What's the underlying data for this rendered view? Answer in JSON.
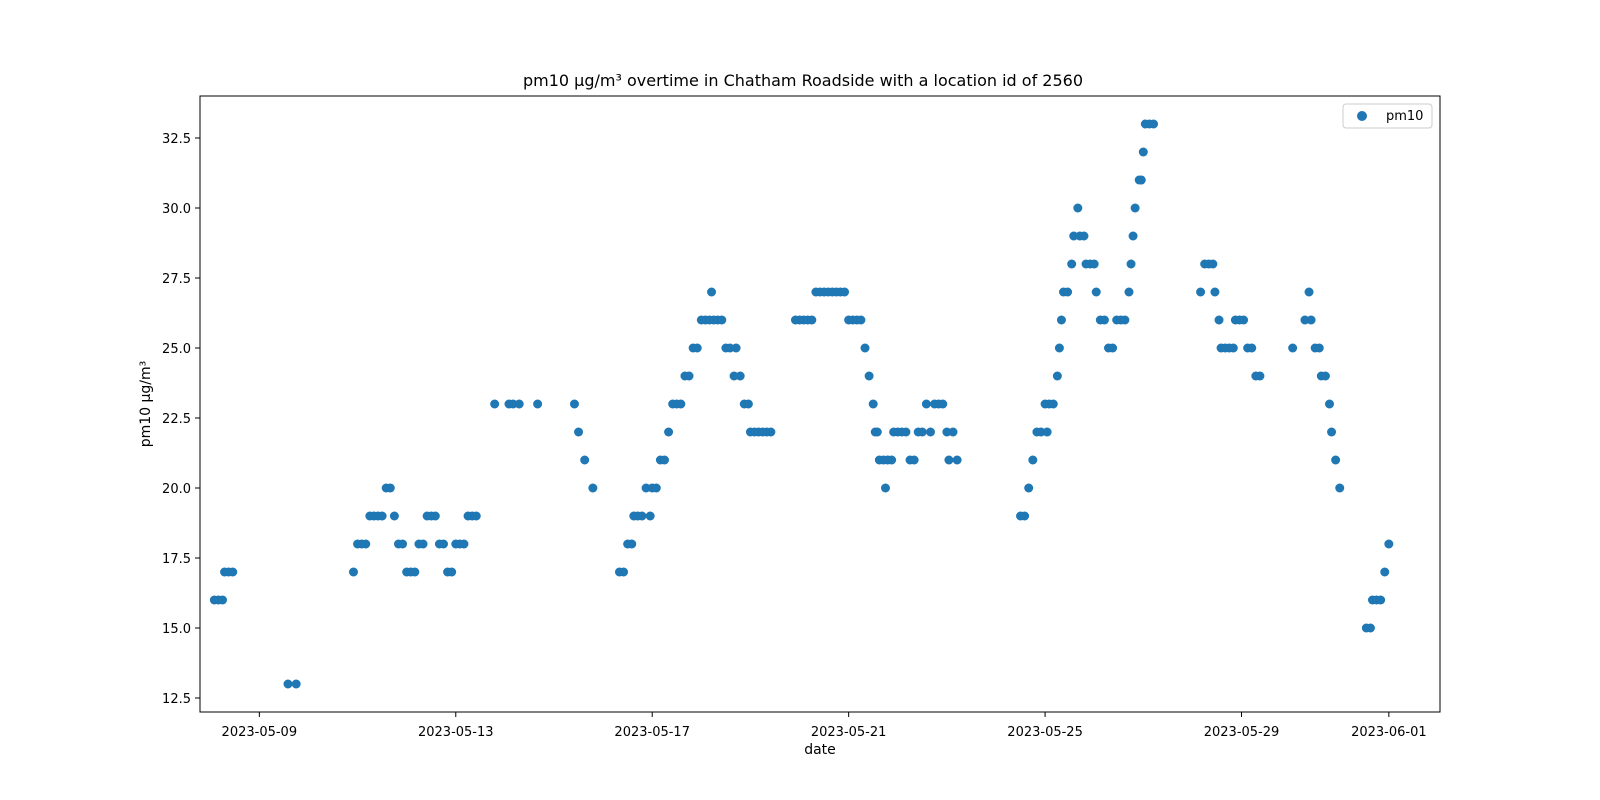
{
  "chart_data": {
    "type": "scatter",
    "title": "pm10 µg/m³ overtime in Chatham Roadside with a location id of 2560",
    "xlabel": "date",
    "ylabel": "pm10 µg/m³",
    "xlim": [
      "2023-05-07T19:00",
      "2023-06-02T01:00"
    ],
    "ylim": [
      12.0,
      34.0
    ],
    "x_ticks": [
      "2023-05-09",
      "2023-05-13",
      "2023-05-17",
      "2023-05-21",
      "2023-05-25",
      "2023-05-29",
      "2023-06-01"
    ],
    "y_ticks": [
      12.5,
      15.0,
      17.5,
      20.0,
      22.5,
      25.0,
      27.5,
      30.0,
      32.5
    ],
    "grid": false,
    "legend": "upper-right",
    "colors": {
      "series": "#1f77b4"
    },
    "series": [
      {
        "name": "pm10",
        "points": [
          [
            "2023-05-08T02:00",
            16
          ],
          [
            "2023-05-08T04:00",
            16
          ],
          [
            "2023-05-08T06:00",
            16
          ],
          [
            "2023-05-08T07:00",
            17
          ],
          [
            "2023-05-08T09:00",
            17
          ],
          [
            "2023-05-08T11:00",
            17
          ],
          [
            "2023-05-09T14:00",
            13
          ],
          [
            "2023-05-09T18:00",
            13
          ],
          [
            "2023-05-10T22:00",
            17
          ],
          [
            "2023-05-11T00:00",
            18
          ],
          [
            "2023-05-11T02:00",
            18
          ],
          [
            "2023-05-11T04:00",
            18
          ],
          [
            "2023-05-11T06:00",
            19
          ],
          [
            "2023-05-11T08:00",
            19
          ],
          [
            "2023-05-11T10:00",
            19
          ],
          [
            "2023-05-11T12:00",
            19
          ],
          [
            "2023-05-11T14:00",
            20
          ],
          [
            "2023-05-11T16:00",
            20
          ],
          [
            "2023-05-11T18:00",
            19
          ],
          [
            "2023-05-11T20:00",
            18
          ],
          [
            "2023-05-11T22:00",
            18
          ],
          [
            "2023-05-12T00:00",
            17
          ],
          [
            "2023-05-12T02:00",
            17
          ],
          [
            "2023-05-12T04:00",
            17
          ],
          [
            "2023-05-12T06:00",
            18
          ],
          [
            "2023-05-12T08:00",
            18
          ],
          [
            "2023-05-12T10:00",
            19
          ],
          [
            "2023-05-12T12:00",
            19
          ],
          [
            "2023-05-12T14:00",
            19
          ],
          [
            "2023-05-12T16:00",
            18
          ],
          [
            "2023-05-12T18:00",
            18
          ],
          [
            "2023-05-12T20:00",
            17
          ],
          [
            "2023-05-12T22:00",
            17
          ],
          [
            "2023-05-13T00:00",
            18
          ],
          [
            "2023-05-13T02:00",
            18
          ],
          [
            "2023-05-13T04:00",
            18
          ],
          [
            "2023-05-13T06:00",
            19
          ],
          [
            "2023-05-13T08:00",
            19
          ],
          [
            "2023-05-13T10:00",
            19
          ],
          [
            "2023-05-13T19:00",
            23
          ],
          [
            "2023-05-14T02:00",
            23
          ],
          [
            "2023-05-14T04:00",
            23
          ],
          [
            "2023-05-14T07:00",
            23
          ],
          [
            "2023-05-14T16:00",
            23
          ],
          [
            "2023-05-15T10:00",
            23
          ],
          [
            "2023-05-15T12:00",
            22
          ],
          [
            "2023-05-15T15:00",
            21
          ],
          [
            "2023-05-15T19:00",
            20
          ],
          [
            "2023-05-16T08:00",
            17
          ],
          [
            "2023-05-16T10:00",
            17
          ],
          [
            "2023-05-16T12:00",
            18
          ],
          [
            "2023-05-16T14:00",
            18
          ],
          [
            "2023-05-16T15:00",
            19
          ],
          [
            "2023-05-16T17:00",
            19
          ],
          [
            "2023-05-16T19:00",
            19
          ],
          [
            "2023-05-16T21:00",
            20
          ],
          [
            "2023-05-16T23:00",
            19
          ],
          [
            "2023-05-17T00:00",
            20
          ],
          [
            "2023-05-17T02:00",
            20
          ],
          [
            "2023-05-17T04:00",
            21
          ],
          [
            "2023-05-17T06:00",
            21
          ],
          [
            "2023-05-17T08:00",
            22
          ],
          [
            "2023-05-17T10:00",
            23
          ],
          [
            "2023-05-17T12:00",
            23
          ],
          [
            "2023-05-17T14:00",
            23
          ],
          [
            "2023-05-17T16:00",
            24
          ],
          [
            "2023-05-17T18:00",
            24
          ],
          [
            "2023-05-17T20:00",
            25
          ],
          [
            "2023-05-17T22:00",
            25
          ],
          [
            "2023-05-18T00:00",
            26
          ],
          [
            "2023-05-18T02:00",
            26
          ],
          [
            "2023-05-18T04:00",
            26
          ],
          [
            "2023-05-18T05:00",
            27
          ],
          [
            "2023-05-18T06:00",
            26
          ],
          [
            "2023-05-18T08:00",
            26
          ],
          [
            "2023-05-18T10:00",
            26
          ],
          [
            "2023-05-18T12:00",
            25
          ],
          [
            "2023-05-18T14:00",
            25
          ],
          [
            "2023-05-18T16:00",
            24
          ],
          [
            "2023-05-18T17:00",
            25
          ],
          [
            "2023-05-18T19:00",
            24
          ],
          [
            "2023-05-18T21:00",
            23
          ],
          [
            "2023-05-18T23:00",
            23
          ],
          [
            "2023-05-19T00:00",
            22
          ],
          [
            "2023-05-19T02:00",
            22
          ],
          [
            "2023-05-19T04:00",
            22
          ],
          [
            "2023-05-19T06:00",
            22
          ],
          [
            "2023-05-19T08:00",
            22
          ],
          [
            "2023-05-19T10:00",
            22
          ],
          [
            "2023-05-19T22:00",
            26
          ],
          [
            "2023-05-20T00:00",
            26
          ],
          [
            "2023-05-20T02:00",
            26
          ],
          [
            "2023-05-20T04:00",
            26
          ],
          [
            "2023-05-20T06:00",
            26
          ],
          [
            "2023-05-20T08:00",
            27
          ],
          [
            "2023-05-20T10:00",
            27
          ],
          [
            "2023-05-20T12:00",
            27
          ],
          [
            "2023-05-20T14:00",
            27
          ],
          [
            "2023-05-20T16:00",
            27
          ],
          [
            "2023-05-20T18:00",
            27
          ],
          [
            "2023-05-20T20:00",
            27
          ],
          [
            "2023-05-20T22:00",
            27
          ],
          [
            "2023-05-21T00:00",
            26
          ],
          [
            "2023-05-21T02:00",
            26
          ],
          [
            "2023-05-21T04:00",
            26
          ],
          [
            "2023-05-21T06:00",
            26
          ],
          [
            "2023-05-21T08:00",
            25
          ],
          [
            "2023-05-21T10:00",
            24
          ],
          [
            "2023-05-21T12:00",
            23
          ],
          [
            "2023-05-21T13:00",
            22
          ],
          [
            "2023-05-21T14:00",
            22
          ],
          [
            "2023-05-21T15:00",
            21
          ],
          [
            "2023-05-21T17:00",
            21
          ],
          [
            "2023-05-21T18:00",
            20
          ],
          [
            "2023-05-21T19:00",
            21
          ],
          [
            "2023-05-21T21:00",
            21
          ],
          [
            "2023-05-21T22:00",
            22
          ],
          [
            "2023-05-22T00:00",
            22
          ],
          [
            "2023-05-22T02:00",
            22
          ],
          [
            "2023-05-22T04:00",
            22
          ],
          [
            "2023-05-22T06:00",
            21
          ],
          [
            "2023-05-22T08:00",
            21
          ],
          [
            "2023-05-22T10:00",
            22
          ],
          [
            "2023-05-22T12:00",
            22
          ],
          [
            "2023-05-22T14:00",
            23
          ],
          [
            "2023-05-22T16:00",
            22
          ],
          [
            "2023-05-22T18:00",
            23
          ],
          [
            "2023-05-22T20:00",
            23
          ],
          [
            "2023-05-22T22:00",
            23
          ],
          [
            "2023-05-23T00:00",
            22
          ],
          [
            "2023-05-23T01:00",
            21
          ],
          [
            "2023-05-23T03:00",
            22
          ],
          [
            "2023-05-23T05:00",
            21
          ],
          [
            "2023-05-24T12:00",
            19
          ],
          [
            "2023-05-24T14:00",
            19
          ],
          [
            "2023-05-24T16:00",
            20
          ],
          [
            "2023-05-24T18:00",
            21
          ],
          [
            "2023-05-24T20:00",
            22
          ],
          [
            "2023-05-24T22:00",
            22
          ],
          [
            "2023-05-25T00:00",
            23
          ],
          [
            "2023-05-25T01:00",
            22
          ],
          [
            "2023-05-25T02:00",
            23
          ],
          [
            "2023-05-25T04:00",
            23
          ],
          [
            "2023-05-25T06:00",
            24
          ],
          [
            "2023-05-25T07:00",
            25
          ],
          [
            "2023-05-25T08:00",
            26
          ],
          [
            "2023-05-25T09:00",
            27
          ],
          [
            "2023-05-25T11:00",
            27
          ],
          [
            "2023-05-25T13:00",
            28
          ],
          [
            "2023-05-25T14:00",
            29
          ],
          [
            "2023-05-25T16:00",
            30
          ],
          [
            "2023-05-25T17:00",
            29
          ],
          [
            "2023-05-25T19:00",
            29
          ],
          [
            "2023-05-25T20:00",
            28
          ],
          [
            "2023-05-25T22:00",
            28
          ],
          [
            "2023-05-26T00:00",
            28
          ],
          [
            "2023-05-26T01:00",
            27
          ],
          [
            "2023-05-26T03:00",
            26
          ],
          [
            "2023-05-26T05:00",
            26
          ],
          [
            "2023-05-26T07:00",
            25
          ],
          [
            "2023-05-26T09:00",
            25
          ],
          [
            "2023-05-26T11:00",
            26
          ],
          [
            "2023-05-26T13:00",
            26
          ],
          [
            "2023-05-26T15:00",
            26
          ],
          [
            "2023-05-26T17:00",
            27
          ],
          [
            "2023-05-26T18:00",
            28
          ],
          [
            "2023-05-26T19:00",
            29
          ],
          [
            "2023-05-26T20:00",
            30
          ],
          [
            "2023-05-26T22:00",
            31
          ],
          [
            "2023-05-26T23:00",
            31
          ],
          [
            "2023-05-27T00:00",
            32
          ],
          [
            "2023-05-27T01:00",
            33
          ],
          [
            "2023-05-27T03:00",
            33
          ],
          [
            "2023-05-27T05:00",
            33
          ],
          [
            "2023-05-28T04:00",
            27
          ],
          [
            "2023-05-28T06:00",
            28
          ],
          [
            "2023-05-28T08:00",
            28
          ],
          [
            "2023-05-28T10:00",
            28
          ],
          [
            "2023-05-28T11:00",
            27
          ],
          [
            "2023-05-28T13:00",
            26
          ],
          [
            "2023-05-28T14:00",
            25
          ],
          [
            "2023-05-28T16:00",
            25
          ],
          [
            "2023-05-28T18:00",
            25
          ],
          [
            "2023-05-28T20:00",
            25
          ],
          [
            "2023-05-28T21:00",
            26
          ],
          [
            "2023-05-28T23:00",
            26
          ],
          [
            "2023-05-29T01:00",
            26
          ],
          [
            "2023-05-29T03:00",
            25
          ],
          [
            "2023-05-29T05:00",
            25
          ],
          [
            "2023-05-29T07:00",
            24
          ],
          [
            "2023-05-29T09:00",
            24
          ],
          [
            "2023-05-30T01:00",
            25
          ],
          [
            "2023-05-30T07:00",
            26
          ],
          [
            "2023-05-30T09:00",
            27
          ],
          [
            "2023-05-30T10:00",
            26
          ],
          [
            "2023-05-30T12:00",
            25
          ],
          [
            "2023-05-30T14:00",
            25
          ],
          [
            "2023-05-30T15:00",
            24
          ],
          [
            "2023-05-30T17:00",
            24
          ],
          [
            "2023-05-30T19:00",
            23
          ],
          [
            "2023-05-30T20:00",
            22
          ],
          [
            "2023-05-30T22:00",
            21
          ],
          [
            "2023-05-31T00:00",
            20
          ],
          [
            "2023-05-31T13:00",
            15
          ],
          [
            "2023-05-31T15:00",
            15
          ],
          [
            "2023-05-31T16:00",
            16
          ],
          [
            "2023-05-31T18:00",
            16
          ],
          [
            "2023-05-31T20:00",
            16
          ],
          [
            "2023-05-31T22:00",
            17
          ],
          [
            "2023-06-01T00:00",
            18
          ]
        ]
      }
    ]
  }
}
